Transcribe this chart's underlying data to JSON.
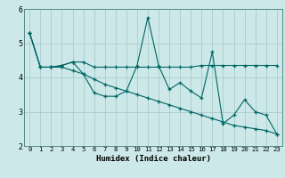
{
  "xlabel": "Humidex (Indice chaleur)",
  "background_color": "#cce8e8",
  "grid_color": "#aacccc",
  "line_color": "#006666",
  "xlim": [
    -0.5,
    23.5
  ],
  "ylim": [
    2,
    6
  ],
  "yticks": [
    2,
    3,
    4,
    5,
    6
  ],
  "xticks": [
    0,
    1,
    2,
    3,
    4,
    5,
    6,
    7,
    8,
    9,
    10,
    11,
    12,
    13,
    14,
    15,
    16,
    17,
    18,
    19,
    20,
    21,
    22,
    23
  ],
  "series": [
    [
      5.3,
      4.3,
      4.3,
      4.35,
      4.45,
      4.1,
      3.55,
      3.45,
      3.45,
      3.6,
      4.35,
      5.75,
      4.35,
      3.65,
      3.85,
      3.6,
      3.4,
      4.75,
      2.65,
      2.9,
      3.35,
      3.0,
      2.9,
      2.35
    ],
    [
      5.3,
      4.3,
      4.3,
      4.35,
      4.45,
      4.45,
      4.3,
      4.3,
      4.3,
      4.3,
      4.3,
      4.3,
      4.3,
      4.3,
      4.3,
      4.3,
      4.35,
      4.35,
      4.35,
      4.35,
      4.35,
      4.35,
      4.35,
      4.35
    ],
    [
      5.3,
      4.3,
      4.3,
      4.3,
      4.2,
      4.1,
      3.95,
      3.8,
      3.7,
      3.6,
      3.5,
      3.4,
      3.3,
      3.2,
      3.1,
      3.0,
      2.9,
      2.8,
      2.7,
      2.6,
      2.55,
      2.5,
      2.45,
      2.35
    ]
  ],
  "figsize": [
    3.2,
    2.0
  ],
  "dpi": 100
}
